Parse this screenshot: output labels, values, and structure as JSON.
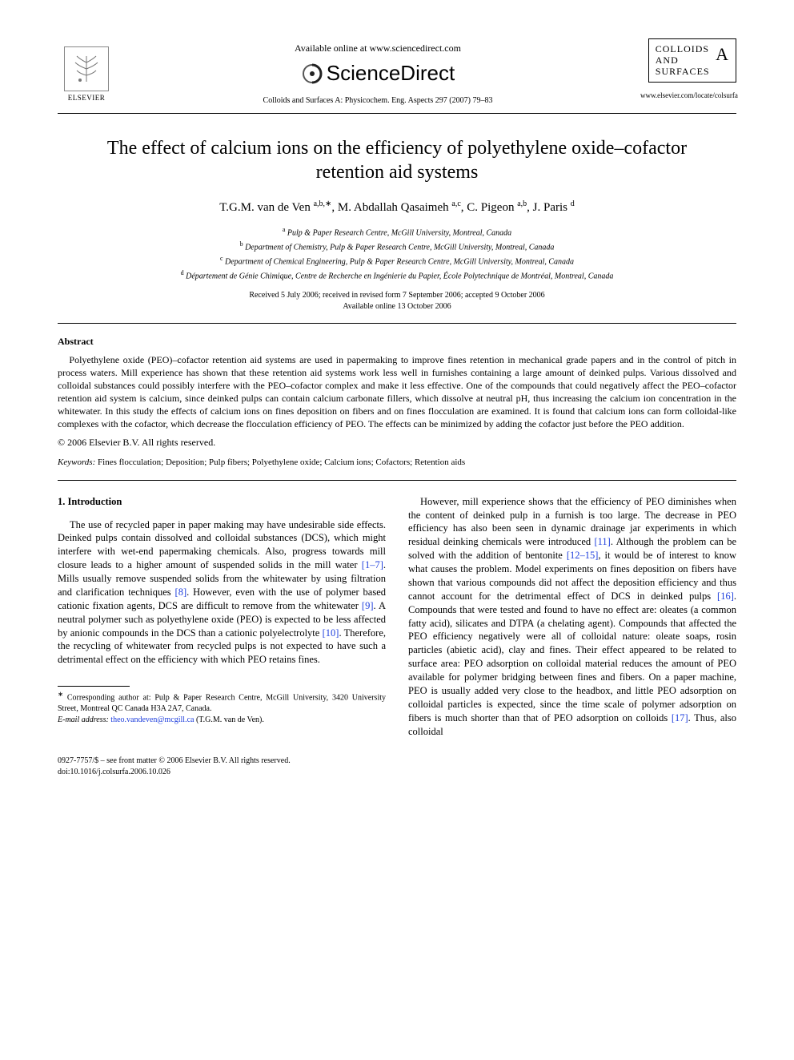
{
  "header": {
    "publisher_name": "ELSEVIER",
    "available_text": "Available online at www.sciencedirect.com",
    "sciencedirect_label": "ScienceDirect",
    "journal_reference": "Colloids and Surfaces A: Physicochem. Eng. Aspects  297 (2007) 79–83",
    "journal_box_line1": "COLLOIDS",
    "journal_box_line2": "AND",
    "journal_box_line3": "SURFACES",
    "journal_box_letter": "A",
    "journal_url": "www.elsevier.com/locate/colsurfa"
  },
  "article": {
    "title": "The effect of calcium ions on the efficiency of polyethylene oxide–cofactor retention aid systems",
    "authors_html": "T.G.M. van de Ven <sup>a,b,∗</sup>, M. Abdallah Qasaimeh <sup>a,c</sup>, C. Pigeon <sup>a,b</sup>, J. Paris <sup>d</sup>",
    "affiliations": [
      "a Pulp & Paper Research Centre, McGill University, Montreal, Canada",
      "b Department of Chemistry, Pulp & Paper Research Centre, McGill University, Montreal, Canada",
      "c Department of Chemical Engineering, Pulp & Paper Research Centre, McGill University, Montreal, Canada",
      "d Département de Génie Chimique, Centre de Recherche en Ingénierie du Papier, École Polytechnique de Montréal, Montreal, Canada"
    ],
    "dates_line1": "Received 5 July 2006; received in revised form 7 September 2006; accepted 9 October 2006",
    "dates_line2": "Available online 13 October 2006"
  },
  "abstract": {
    "heading": "Abstract",
    "text": "Polyethylene oxide (PEO)–cofactor retention aid systems are used in papermaking to improve fines retention in mechanical grade papers and in the control of pitch in process waters. Mill experience has shown that these retention aid systems work less well in furnishes containing a large amount of deinked pulps. Various dissolved and colloidal substances could possibly interfere with the PEO–cofactor complex and make it less effective. One of the compounds that could negatively affect the PEO–cofactor retention aid system is calcium, since deinked pulps can contain calcium carbonate fillers, which dissolve at neutral pH, thus increasing the calcium ion concentration in the whitewater. In this study the effects of calcium ions on fines deposition on fibers and on fines flocculation are examined. It is found that calcium ions can form colloidal-like complexes with the cofactor, which decrease the flocculation efficiency of PEO. The effects can be minimized by adding the cofactor just before the PEO addition.",
    "copyright": "© 2006 Elsevier B.V. All rights reserved."
  },
  "keywords": {
    "label": "Keywords:",
    "text": "Fines flocculation; Deposition; Pulp fibers; Polyethylene oxide; Calcium ions; Cofactors; Retention aids"
  },
  "body": {
    "section_number": "1.",
    "section_title": "Introduction",
    "col1_p1_a": "The use of recycled paper in paper making may have undesirable side effects. Deinked pulps contain dissolved and colloidal substances (DCS), which might interfere with wet-end papermaking chemicals. Also, progress towards mill closure leads to a higher amount of suspended solids in the mill water ",
    "ref_1_7": "[1–7]",
    "col1_p1_b": ". Mills usually remove suspended solids from the whitewater by using filtration and clarification techniques ",
    "ref_8": "[8]",
    "col1_p1_c": ". However, even with the use of polymer based cationic fixation agents, DCS are difficult to remove from the whitewater ",
    "ref_9": "[9]",
    "col1_p1_d": ". A neutral polymer such as polyethylene oxide (PEO) is expected to be less affected by anionic compounds in the DCS than a cationic polyelectrolyte ",
    "ref_10": "[10]",
    "col1_p1_e": ". Therefore, the recycling of whitewater from recycled pulps is not expected to have such a detrimental effect on the efficiency with which PEO retains fines.",
    "col2_p1_a": "However, mill experience shows that the efficiency of PEO diminishes when the content of deinked pulp in a furnish is too large. The decrease in PEO efficiency has also been seen in dynamic drainage jar experiments in which residual deinking chemicals were introduced ",
    "ref_11": "[11]",
    "col2_p1_b": ". Although the problem can be solved with the addition of bentonite ",
    "ref_12_15": "[12–15]",
    "col2_p1_c": ", it would be of interest to know what causes the problem. Model experiments on fines deposition on fibers have shown that various compounds did not affect the deposition efficiency and thus cannot account for the detrimental effect of DCS in deinked pulps ",
    "ref_16": "[16]",
    "col2_p1_d": ". Compounds that were tested and found to have no effect are: oleates (a common fatty acid), silicates and DTPA (a chelating agent). Compounds that affected the PEO efficiency negatively were all of colloidal nature: oleate soaps, rosin particles (abietic acid), clay and fines. Their effect appeared to be related to surface area: PEO adsorption on colloidal material reduces the amount of PEO available for polymer bridging between fines and fibers. On a paper machine, PEO is usually added very close to the headbox, and little PEO adsorption on colloidal particles is expected, since the time scale of polymer adsorption on fibers is much shorter than that of PEO adsorption on colloids ",
    "ref_17": "[17]",
    "col2_p1_e": ". Thus, also colloidal"
  },
  "footnotes": {
    "corr_label": "∗",
    "corr_text": "Corresponding author at: Pulp & Paper Research Centre, McGill University, 3420 University Street, Montreal QC Canada H3A 2A7, Canada.",
    "email_label": "E-mail address:",
    "email": "theo.vandeven@mcgill.ca",
    "email_suffix": "(T.G.M. van de Ven)."
  },
  "footer": {
    "line1": "0927-7757/$ – see front matter © 2006 Elsevier B.V. All rights reserved.",
    "line2": "doi:10.1016/j.colsurfa.2006.10.026"
  },
  "colors": {
    "link": "#2040dd",
    "text": "#000000",
    "bg": "#ffffff"
  }
}
